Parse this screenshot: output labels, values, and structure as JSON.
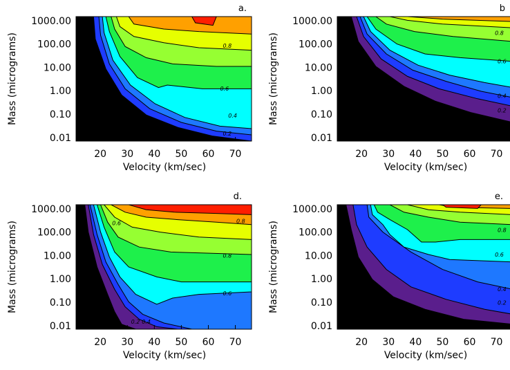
{
  "chart_data": [
    {
      "type": "contour",
      "panel_label": "a.",
      "xlabel": "Velocity (km/sec)",
      "ylabel": "Mass (micrograms)",
      "x_ticks": [
        "20",
        "30",
        "40",
        "50",
        "60",
        "70"
      ],
      "y_ticks": [
        "1000.00",
        "100.00",
        "10.00",
        "1.00",
        "0.10",
        "0.01"
      ],
      "y_scale": "log",
      "xlim": [
        11,
        76
      ],
      "ylim": [
        0.007,
        1500
      ],
      "contour_labels": [
        {
          "text": "0.8",
          "x": 67,
          "y": 70
        },
        {
          "text": "0.6",
          "x": 66,
          "y": 1.0
        },
        {
          "text": "0.4",
          "x": 69,
          "y": 0.07
        },
        {
          "text": "0.2",
          "x": 67,
          "y": 0.012
        }
      ]
    },
    {
      "type": "contour",
      "panel_label": "b",
      "xlabel": "Velocity (km/sec)",
      "ylabel": "Mass (micrograms)",
      "x_ticks": [
        "20",
        "30",
        "40",
        "50",
        "60",
        "70"
      ],
      "y_ticks": [
        "1000.00",
        "100.00",
        "10.00",
        "1.00",
        "0.10",
        "0.01"
      ],
      "y_scale": "log",
      "xlim": [
        11,
        76
      ],
      "ylim": [
        0.007,
        1500
      ],
      "contour_labels": [
        {
          "text": "0.8",
          "x": 71,
          "y": 250
        },
        {
          "text": "0.6",
          "x": 72,
          "y": 15
        },
        {
          "text": "0.4",
          "x": 72,
          "y": 0.5
        },
        {
          "text": "0.2",
          "x": 72,
          "y": 0.12
        }
      ]
    },
    {
      "type": "contour",
      "panel_label": "d.",
      "xlabel": "Velocity (km/sec)",
      "ylabel": "Mass (micrograms)",
      "x_ticks": [
        "20",
        "30",
        "40",
        "50",
        "60",
        "70"
      ],
      "y_ticks": [
        "1000.00",
        "100.00",
        "10.00",
        "1.00",
        "0.10",
        "0.01"
      ],
      "y_scale": "log",
      "xlim": [
        11,
        76
      ],
      "ylim": [
        0.007,
        1500
      ],
      "contour_labels": [
        {
          "text": "0.8",
          "x": 72,
          "y": 250
        },
        {
          "text": "0.6",
          "x": 26,
          "y": 200
        },
        {
          "text": "0.8",
          "x": 67,
          "y": 8
        },
        {
          "text": "0.6",
          "x": 67,
          "y": 0.2
        },
        {
          "text": "0.4",
          "x": 37,
          "y": 0.012
        },
        {
          "text": "0.2",
          "x": 33,
          "y": 0.012
        }
      ]
    },
    {
      "type": "contour",
      "panel_label": "e.",
      "xlabel": "Velocity (km/sec)",
      "ylabel": "Mass (micrograms)",
      "x_ticks": [
        "20",
        "30",
        "40",
        "50",
        "60",
        "70"
      ],
      "y_ticks": [
        "1000.00",
        "100.00",
        "10.00",
        "1.00",
        "0.10",
        "0.01"
      ],
      "y_scale": "log",
      "xlim": [
        11,
        76
      ],
      "ylim": [
        0.007,
        1500
      ],
      "contour_labels": [
        {
          "text": "0.8",
          "x": 72,
          "y": 100
        },
        {
          "text": "0.6",
          "x": 71,
          "y": 9
        },
        {
          "text": "0.4",
          "x": 72,
          "y": 0.3
        },
        {
          "text": "0.2",
          "x": 72,
          "y": 0.08
        }
      ]
    }
  ],
  "colors": {
    "black": "#000000",
    "purple": "#5a1e8c",
    "blue": "#1e3cff",
    "midblue": "#1e78ff",
    "cyan": "#00ffff",
    "green": "#1ef04b",
    "lightgreen": "#96ff32",
    "yellow": "#e6ff00",
    "orange": "#ffa000",
    "red": "#ff1e00"
  }
}
